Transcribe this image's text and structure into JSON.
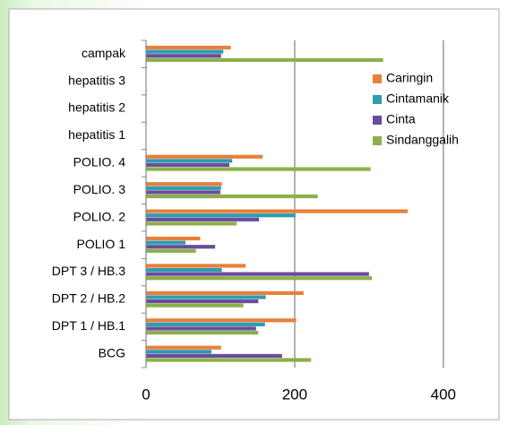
{
  "chart_data": {
    "type": "bar",
    "orientation": "horizontal",
    "categories": [
      "BCG",
      "DPT 1 / HB.1",
      "DPT 2 / HB.2",
      "DPT 3 / HB.3",
      "POLIO 1",
      "POLIO. 2",
      "POLIO.  3",
      "POLIO. 4",
      "hepatitis 1",
      "hepatitis 2",
      "hepatitis 3",
      "campak"
    ],
    "series": [
      {
        "name": "Caringin",
        "color": "#e8803a",
        "values": [
          101,
          202,
          212,
          134,
          73,
          352,
          102,
          157,
          0,
          0,
          0,
          114
        ]
      },
      {
        "name": "Cintamanik",
        "color": "#2f9bb0",
        "values": [
          88,
          160,
          161,
          102,
          53,
          201,
          101,
          116,
          0,
          0,
          0,
          104
        ]
      },
      {
        "name": "Cinta",
        "color": "#6a4c9c",
        "values": [
          183,
          148,
          151,
          300,
          93,
          152,
          100,
          112,
          0,
          0,
          0,
          101
        ]
      },
      {
        "name": "Sindanggalih",
        "color": "#8db04a",
        "values": [
          222,
          151,
          131,
          304,
          67,
          122,
          231,
          302,
          0,
          0,
          0,
          319
        ]
      }
    ],
    "xlim": [
      0,
      440
    ],
    "xticks": [
      0,
      200,
      400
    ],
    "grid": true,
    "legend": "right"
  }
}
